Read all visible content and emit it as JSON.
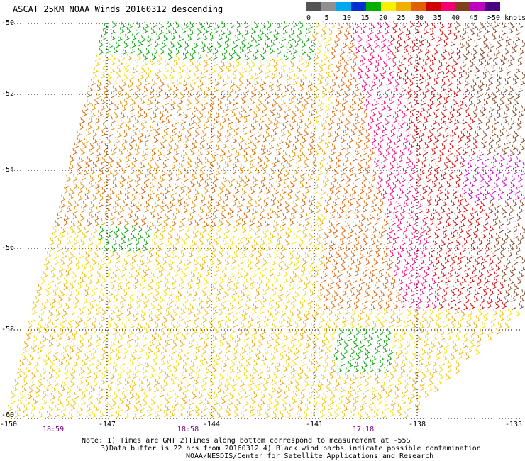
{
  "title": "ASCAT 25KM NOAA Winds 20160312 descending",
  "colorbar": {
    "labels": [
      "0",
      "5",
      "10",
      "15",
      "20",
      "25",
      "30",
      "35",
      "40",
      "45",
      ">50 knots"
    ],
    "colors": [
      "#555555",
      "#909090",
      "#00a8f0",
      "#0030d0",
      "#00b000",
      "#f8f000",
      "#f0b000",
      "#e06000",
      "#d00000",
      "#f00070",
      "#804020",
      "#c000c0",
      "#4b0082"
    ]
  },
  "lat_labels": [
    "-50",
    "-52",
    "-54",
    "-56",
    "-58",
    "-60"
  ],
  "lon_labels": [
    "-150",
    "-147",
    "-144",
    "-141",
    "-138",
    "-135"
  ],
  "time_labels": [
    "18:59",
    "18:58",
    "17:18"
  ],
  "notes": [
    "Note: 1) Times are GMT 2)Times along bottom correspond to measurement at -55S",
    "3)Data buffer is 22 hrs from 20160312 4) Black wind barbs indicate possible contamination",
    "NOAA/NESDIS/Center for Satellite Applications and Research"
  ]
}
